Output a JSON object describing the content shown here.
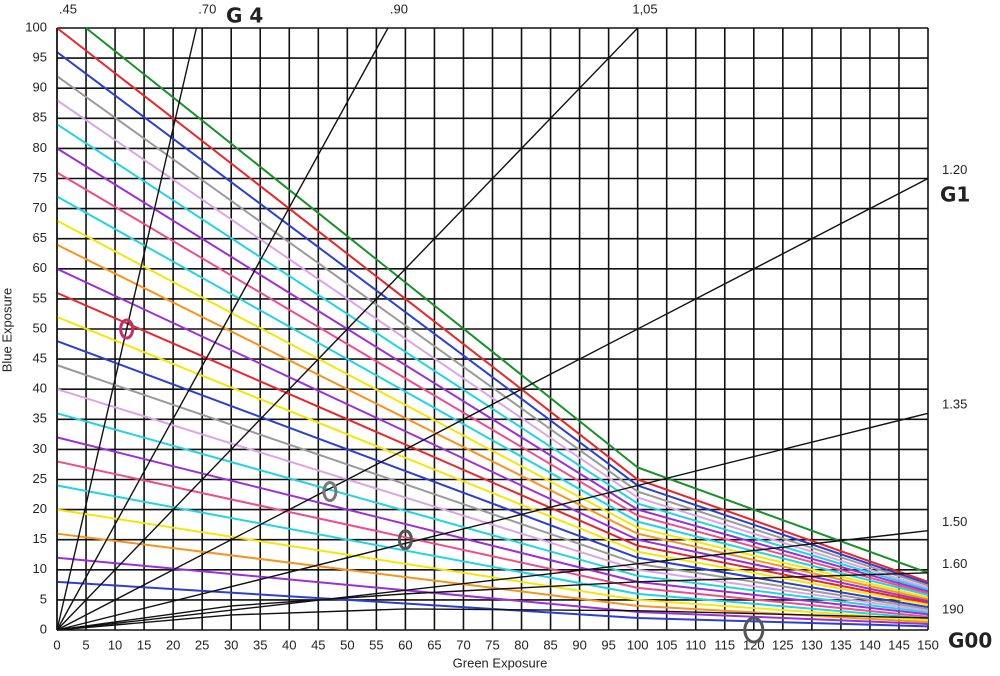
{
  "chart_data": {
    "type": "line",
    "x_label": "Green Exposure",
    "y_label": "Blue Exposure",
    "xlim": [
      0,
      150
    ],
    "ylim": [
      0,
      100
    ],
    "xticks": [
      0,
      5,
      10,
      15,
      20,
      25,
      30,
      35,
      40,
      45,
      50,
      55,
      60,
      65,
      70,
      75,
      80,
      85,
      90,
      95,
      100,
      105,
      110,
      115,
      120,
      125,
      130,
      135,
      140,
      145,
      150
    ],
    "yticks": [
      0,
      5,
      10,
      15,
      20,
      25,
      30,
      35,
      40,
      45,
      50,
      55,
      60,
      65,
      70,
      75,
      80,
      85,
      90,
      95,
      100
    ],
    "grid": true,
    "rays": [
      {
        "label": ".45",
        "x": [
          0,
          0
        ],
        "y": [
          0,
          100
        ]
      },
      {
        "label": ".70",
        "x": [
          0,
          24
        ],
        "y": [
          0,
          100
        ]
      },
      {
        "label": ".90",
        "x": [
          0,
          57
        ],
        "y": [
          0,
          100
        ]
      },
      {
        "label": "1,05",
        "x": [
          0,
          100
        ],
        "y": [
          0,
          100
        ]
      },
      {
        "label": "1.20",
        "x": [
          0,
          150
        ],
        "y": [
          0,
          75
        ]
      },
      {
        "label": "1.35",
        "x": [
          0,
          150
        ],
        "y": [
          0,
          36
        ]
      },
      {
        "label": "1.50",
        "x": [
          0,
          150
        ],
        "y": [
          0,
          16.5
        ]
      },
      {
        "label": "1.60",
        "x": [
          0,
          30,
          60,
          100,
          150
        ],
        "y": [
          0,
          4,
          6,
          8,
          9.5
        ]
      },
      {
        "label": "190",
        "x": [
          0,
          30,
          60,
          100,
          150
        ],
        "y": [
          0,
          2.5,
          3.5,
          3.2,
          2
        ]
      }
    ],
    "iso_lines": [
      {
        "color": "#1a8f2a",
        "x": [
          5,
          100,
          150
        ],
        "y": [
          100,
          27,
          9.5
        ]
      },
      {
        "color": "#e8262b",
        "x": [
          0,
          100,
          150
        ],
        "y": [
          100,
          25,
          8
        ]
      },
      {
        "color": "#2d3fcf",
        "x": [
          0,
          100,
          150
        ],
        "y": [
          96,
          24,
          7.7
        ]
      },
      {
        "color": "#9a9a9a",
        "x": [
          0,
          100,
          150
        ],
        "y": [
          92,
          23,
          7.4
        ]
      },
      {
        "color": "#d9a6e8",
        "x": [
          0,
          100,
          150
        ],
        "y": [
          88,
          22,
          7
        ]
      },
      {
        "color": "#22d3e0",
        "x": [
          0,
          100,
          150
        ],
        "y": [
          84,
          21,
          6.7
        ]
      },
      {
        "color": "#9b30d9",
        "x": [
          0,
          100,
          150
        ],
        "y": [
          80,
          20,
          6.4
        ]
      },
      {
        "color": "#f04c8c",
        "x": [
          0,
          100,
          150
        ],
        "y": [
          76,
          19,
          6.1
        ]
      },
      {
        "color": "#22d3e0",
        "x": [
          0,
          100,
          150
        ],
        "y": [
          72,
          18,
          5.8
        ]
      },
      {
        "color": "#f5e60a",
        "x": [
          0,
          100,
          150
        ],
        "y": [
          68,
          17,
          5.4
        ]
      },
      {
        "color": "#f5941e",
        "x": [
          0,
          100,
          150
        ],
        "y": [
          64,
          16,
          5.1
        ]
      },
      {
        "color": "#9b30d9",
        "x": [
          0,
          100,
          150
        ],
        "y": [
          60,
          15,
          4.8
        ]
      },
      {
        "color": "#e8262b",
        "x": [
          0,
          100,
          150
        ],
        "y": [
          56,
          14,
          4.5
        ]
      },
      {
        "color": "#f5e60a",
        "x": [
          0,
          100,
          150
        ],
        "y": [
          52,
          13,
          4.2
        ]
      },
      {
        "color": "#2d3fcf",
        "x": [
          0,
          100,
          150
        ],
        "y": [
          48,
          12,
          3.8
        ]
      },
      {
        "color": "#9a9a9a",
        "x": [
          0,
          100,
          150
        ],
        "y": [
          44,
          11,
          3.5
        ]
      },
      {
        "color": "#d9a6e8",
        "x": [
          0,
          100,
          150
        ],
        "y": [
          40,
          10,
          3.2
        ]
      },
      {
        "color": "#22d3e0",
        "x": [
          0,
          100,
          150
        ],
        "y": [
          36,
          9,
          2.9
        ]
      },
      {
        "color": "#9b30d9",
        "x": [
          0,
          100,
          150
        ],
        "y": [
          32,
          8,
          2.6
        ]
      },
      {
        "color": "#f04c8c",
        "x": [
          0,
          100,
          150
        ],
        "y": [
          28,
          7,
          2.2
        ]
      },
      {
        "color": "#22d3e0",
        "x": [
          0,
          100,
          150
        ],
        "y": [
          24,
          6,
          1.9
        ]
      },
      {
        "color": "#f5e60a",
        "x": [
          0,
          100,
          150
        ],
        "y": [
          20,
          5,
          1.6
        ]
      },
      {
        "color": "#f5941e",
        "x": [
          0,
          100,
          150
        ],
        "y": [
          16,
          4,
          1.3
        ]
      },
      {
        "color": "#9b30d9",
        "x": [
          0,
          100,
          150
        ],
        "y": [
          12,
          3,
          1
        ]
      },
      {
        "color": "#2d3fcf",
        "x": [
          0,
          100,
          150
        ],
        "y": [
          8,
          2,
          0.6
        ]
      }
    ],
    "markers": {
      "x": [
        12,
        47,
        60,
        120
      ],
      "y": [
        50,
        23,
        15,
        0
      ],
      "colors": [
        "#c0306a",
        "#777777",
        "#555555",
        "#555555"
      ]
    },
    "annotations": [
      "G 4",
      "G1",
      "G00"
    ]
  }
}
